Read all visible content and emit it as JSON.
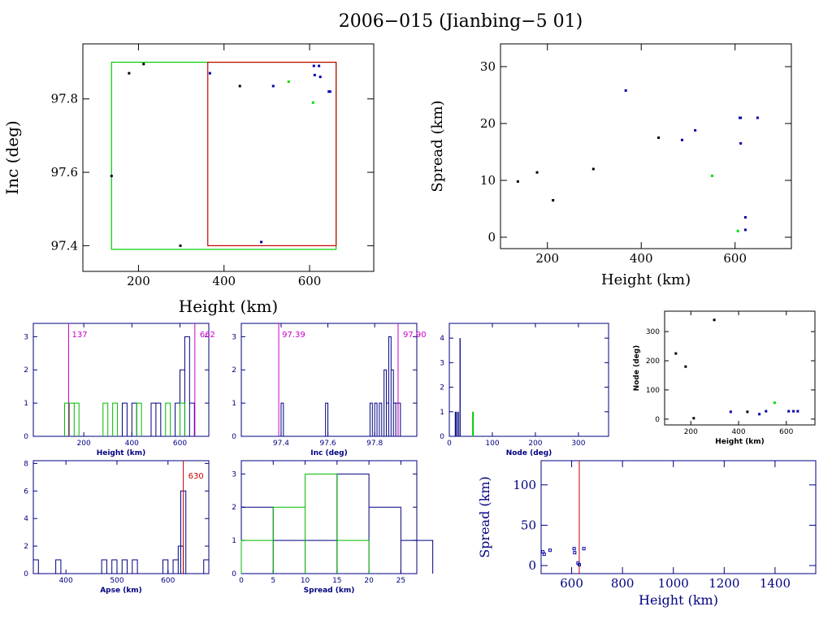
{
  "title": "2006−015 (Jianbing−5 01)",
  "chart_data": [
    {
      "id": "inc_height",
      "type": "scatter",
      "xlabel": "Height (km)",
      "ylabel": "Inc (deg)",
      "xlim": [
        70,
        750
      ],
      "ylim": [
        97.33,
        97.95
      ],
      "xticks": [
        200,
        400,
        600
      ],
      "yticks": [
        97.4,
        97.6,
        97.8
      ],
      "ytick_labels": [
        "97.4",
        "97.6",
        "97.8"
      ],
      "series": [
        {
          "color": "#000000",
          "points": [
            [
              137,
              97.59
            ],
            [
              178,
              97.87
            ],
            [
              212,
              97.895
            ],
            [
              298,
              97.4
            ],
            [
              437,
              97.835
            ]
          ]
        },
        {
          "color": "#0000aa",
          "points": [
            [
              367,
              97.87
            ],
            [
              487,
              97.41
            ],
            [
              515,
              97.835
            ],
            [
              610,
              97.89
            ],
            [
              612,
              97.865
            ],
            [
              622,
              97.89
            ],
            [
              625,
              97.86
            ],
            [
              645,
              97.82
            ],
            [
              648,
              97.82
            ]
          ]
        },
        {
          "color": "#00dd00",
          "points": [
            [
              551,
              97.847
            ],
            [
              608,
              97.79
            ]
          ]
        }
      ],
      "boxes": [
        {
          "color": "#00cc00",
          "x": [
            137,
            662
          ],
          "y": [
            97.39,
            97.9
          ]
        },
        {
          "color": "#cc0000",
          "x": [
            362,
            662
          ],
          "y": [
            97.4,
            97.9
          ]
        }
      ]
    },
    {
      "id": "spread_height",
      "type": "scatter",
      "xlabel": "Height (km)",
      "ylabel": "Spread (km)",
      "xlim": [
        100,
        720
      ],
      "ylim": [
        -2,
        34
      ],
      "xticks": [
        200,
        400,
        600
      ],
      "yticks": [
        0,
        10,
        20,
        30
      ],
      "series": [
        {
          "color": "#000000",
          "points": [
            [
              137,
              9.8
            ],
            [
              178,
              11.4
            ],
            [
              212,
              6.5
            ],
            [
              298,
              12
            ],
            [
              437,
              17.5
            ]
          ]
        },
        {
          "color": "#0000aa",
          "points": [
            [
              367,
              25.8
            ],
            [
              487,
              17.1
            ],
            [
              515,
              18.8
            ],
            [
              610,
              21
            ],
            [
              612,
              16.5
            ],
            [
              612,
              21
            ],
            [
              622,
              3.5
            ],
            [
              622,
              1.3
            ],
            [
              648,
              21
            ]
          ]
        },
        {
          "color": "#00dd00",
          "points": [
            [
              551,
              10.8
            ],
            [
              606,
              1.1
            ]
          ]
        }
      ]
    },
    {
      "id": "height_hist",
      "type": "histogram",
      "xlabel": "Height (km)",
      "xlim": [
        -10,
        720
      ],
      "ylim": [
        0,
        3.4
      ],
      "xticks": [
        200,
        400,
        600
      ],
      "yticks": [
        0,
        1,
        2,
        3
      ],
      "bin_width": 20,
      "series": [
        {
          "color": "#000080",
          "bins": [
            [
              360,
              1
            ],
            [
              400,
              1
            ],
            [
              480,
              1
            ],
            [
              500,
              1
            ],
            [
              580,
              1
            ],
            [
              600,
              2
            ],
            [
              620,
              3
            ],
            [
              640,
              1
            ]
          ]
        },
        {
          "color": "#00bb00",
          "bins": [
            [
              120,
              1
            ],
            [
              140,
              1
            ],
            [
              160,
              1
            ],
            [
              280,
              1
            ],
            [
              320,
              1
            ],
            [
              420,
              1
            ],
            [
              540,
              1
            ],
            [
              600,
              1
            ]
          ]
        }
      ],
      "markers": [
        {
          "x": 137,
          "label": "137"
        },
        {
          "x": 662,
          "label": "662"
        }
      ],
      "marker_color": "#cc00cc"
    },
    {
      "id": "inc_hist",
      "type": "histogram",
      "xlabel": "Inc (deg)",
      "xlim": [
        97.23,
        97.98
      ],
      "ylim": [
        0,
        3.4
      ],
      "xticks": [
        97.4,
        97.6,
        97.8
      ],
      "xtick_labels": [
        "97.4",
        "97.6",
        "97.8"
      ],
      "yticks": [
        0,
        1,
        2,
        3
      ],
      "bin_width": 0.01,
      "series": [
        {
          "color": "#000080",
          "bins": [
            [
              97.4,
              1
            ],
            [
              97.59,
              1
            ],
            [
              97.78,
              1
            ],
            [
              97.8,
              1
            ],
            [
              97.82,
              1
            ],
            [
              97.84,
              2
            ],
            [
              97.85,
              1
            ],
            [
              97.86,
              3
            ],
            [
              97.87,
              2
            ],
            [
              97.88,
              1
            ],
            [
              97.89,
              1
            ],
            [
              97.9,
              1
            ]
          ]
        }
      ],
      "markers": [
        {
          "x": 97.39,
          "label": "97.39"
        },
        {
          "x": 97.9,
          "label": "97.90"
        }
      ],
      "marker_color": "#cc00cc"
    },
    {
      "id": "node_hist",
      "type": "histogram",
      "xlabel": "Node (deg)",
      "xlim": [
        0,
        370
      ],
      "ylim": [
        0,
        4.6
      ],
      "xticks": [
        0,
        100,
        200,
        300
      ],
      "yticks": [
        0,
        1,
        2,
        3,
        4
      ],
      "series": [
        {
          "color": "#000080",
          "spikes": [
            [
              14,
              1
            ],
            [
              17,
              1
            ],
            [
              21,
              1
            ],
            [
              25,
              4
            ]
          ]
        },
        {
          "color": "#00cc00",
          "spikes": [
            [
              55,
              1
            ]
          ]
        }
      ]
    },
    {
      "id": "node_height",
      "type": "scatter",
      "xlabel": "Height (km)",
      "ylabel": "Node (deg)",
      "xlim": [
        90,
        720
      ],
      "ylim": [
        -20,
        370
      ],
      "xticks": [
        200,
        400,
        600
      ],
      "yticks": [
        0,
        100,
        200,
        300
      ],
      "series": [
        {
          "color": "#000000",
          "points": [
            [
              137,
              225
            ],
            [
              178,
              180
            ],
            [
              212,
              3
            ],
            [
              298,
              340
            ],
            [
              437,
              25
            ]
          ]
        },
        {
          "color": "#0000aa",
          "points": [
            [
              367,
              25
            ],
            [
              487,
              17
            ],
            [
              515,
              27
            ],
            [
              610,
              27
            ],
            [
              630,
              27
            ],
            [
              648,
              27
            ]
          ]
        },
        {
          "color": "#00dd00",
          "points": [
            [
              551,
              56
            ]
          ]
        }
      ]
    },
    {
      "id": "apse_hist",
      "type": "histogram",
      "xlabel": "Apse (km)",
      "xlim": [
        336,
        680
      ],
      "ylim": [
        0,
        8.2
      ],
      "xticks": [
        400,
        500,
        600
      ],
      "yticks": [
        0,
        2,
        4,
        6,
        8
      ],
      "bin_width": 10,
      "series": [
        {
          "color": "#000080",
          "bins": [
            [
              336,
              1
            ],
            [
              380,
              1
            ],
            [
              470,
              1
            ],
            [
              490,
              1
            ],
            [
              510,
              1
            ],
            [
              530,
              1
            ],
            [
              590,
              1
            ],
            [
              610,
              1
            ],
            [
              620,
              2
            ],
            [
              625,
              6
            ],
            [
              670,
              1
            ]
          ]
        }
      ],
      "markers": [
        {
          "x": 630,
          "label": "630"
        }
      ],
      "marker_color": "#cc0000"
    },
    {
      "id": "spread_hist",
      "type": "histogram",
      "xlabel": "Spread (km)",
      "xlim": [
        0,
        27.5
      ],
      "ylim": [
        0,
        3.4
      ],
      "xticks": [
        0,
        5,
        10,
        15,
        20,
        25
      ],
      "yticks": [
        0,
        1,
        2,
        3
      ],
      "bin_width": 5,
      "series": [
        {
          "color": "#000080",
          "bins": [
            [
              0,
              2
            ],
            [
              5,
              1
            ],
            [
              10,
              1
            ],
            [
              15,
              3
            ],
            [
              20,
              2
            ],
            [
              25,
              1
            ]
          ]
        },
        {
          "color": "#00bb00",
          "bins": [
            [
              0,
              1
            ],
            [
              5,
              2
            ],
            [
              10,
              3
            ],
            [
              15,
              1
            ]
          ]
        }
      ]
    },
    {
      "id": "spread_height_wide",
      "type": "scatter",
      "xlabel": "Height (km)",
      "ylabel": "Spread (km)",
      "xlim": [
        480,
        1560
      ],
      "ylim": [
        -10,
        130
      ],
      "xticks": [
        600,
        800,
        1000,
        1200,
        1400
      ],
      "yticks": [
        0,
        50,
        100
      ],
      "vline": 630,
      "series": [
        {
          "color": "#0000aa",
          "points": [
            [
              487,
              17
            ],
            [
              492,
              14
            ],
            [
              515,
              19
            ],
            [
              610,
              21
            ],
            [
              612,
              16
            ],
            [
              625,
              3
            ],
            [
              630,
              1
            ],
            [
              648,
              21
            ]
          ]
        }
      ]
    }
  ]
}
